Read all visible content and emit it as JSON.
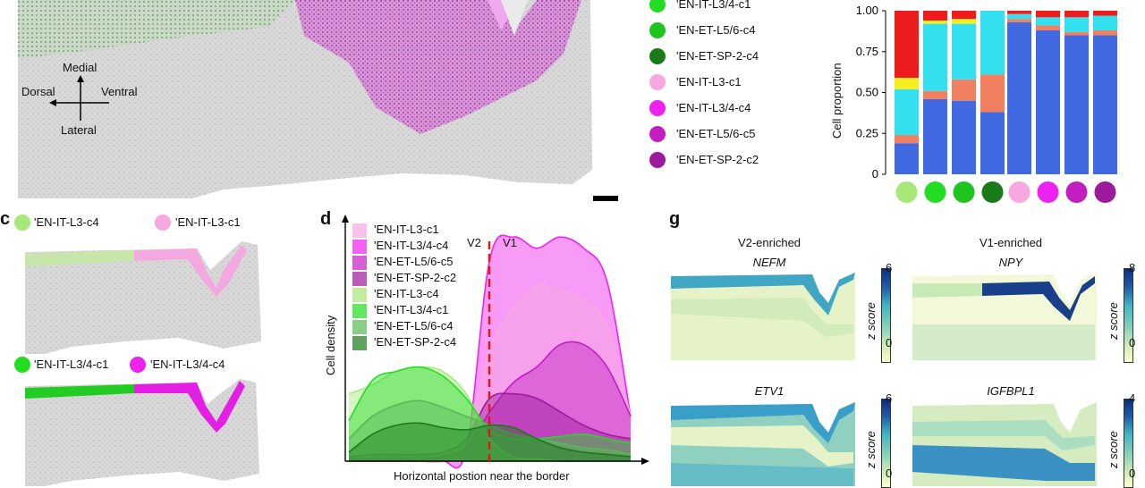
{
  "colors": {
    "green_c4": "#a6e87a",
    "green_c1": "#22dd22",
    "green_c4b": "#1fc41f",
    "green_c2": "#1a7a1a",
    "pink_c1": "#f7a8e0",
    "magenta_c4": "#ee22ee",
    "purple_c5": "#c21fc2",
    "purple_c2": "#9c1a9c",
    "bar_blue": "#4169e1",
    "bar_salmon": "#f08060",
    "bar_cyan": "#33e0f0",
    "bar_yellow": "#f4f020",
    "bar_red": "#ee1c1c"
  },
  "panel_a": {
    "orientation": {
      "medial": "Medial",
      "dorsal": "Dorsal",
      "ventral": "Ventral",
      "lateral": "Lateral"
    },
    "legend": [
      {
        "label": "'EN-IT-L3/4-c1",
        "color": "#22dd22"
      },
      {
        "label": "'EN-ET-L5/6-c4",
        "color": "#1fc41f"
      },
      {
        "label": "'EN-ET-SP-2-c4",
        "color": "#1a7a1a"
      },
      {
        "label": "'EN-IT-L3-c1",
        "color": "#f7a8e0"
      },
      {
        "label": "'EN-IT-L3/4-c4",
        "color": "#ee22ee"
      },
      {
        "label": "'EN-ET-L5/6-c5",
        "color": "#c21fc2"
      },
      {
        "label": "'EN-ET-SP-2-c2",
        "color": "#9c1a9c"
      }
    ]
  },
  "chart_data": [
    {
      "type": "bar",
      "stacked": true,
      "ylabel": "Cell proportion",
      "ylim": [
        0,
        1
      ],
      "yticks": [
        "0",
        "0.25",
        "0.50",
        "0.75",
        "1.00"
      ],
      "category_colors": [
        "#a6e87a",
        "#22dd22",
        "#1fc41f",
        "#1a7a1a",
        "#f7a8e0",
        "#ee22ee",
        "#c21fc2",
        "#9c1a9c"
      ],
      "series": [
        {
          "color": "#4169e1",
          "values": [
            0.19,
            0.46,
            0.45,
            0.38,
            0.93,
            0.88,
            0.85,
            0.85
          ]
        },
        {
          "color": "#f08060",
          "values": [
            0.05,
            0.05,
            0.13,
            0.23,
            0.02,
            0.03,
            0.02,
            0.03
          ]
        },
        {
          "color": "#33e0f0",
          "values": [
            0.28,
            0.41,
            0.34,
            0.39,
            0.03,
            0.05,
            0.09,
            0.09
          ]
        },
        {
          "color": "#f4f020",
          "values": [
            0.07,
            0.02,
            0.03,
            0.0,
            0.0,
            0.0,
            0.0,
            0.0
          ]
        },
        {
          "color": "#ee1c1c",
          "values": [
            0.41,
            0.06,
            0.05,
            0.0,
            0.02,
            0.04,
            0.04,
            0.03
          ]
        }
      ]
    },
    {
      "type": "area",
      "xlabel": "Horizontal postion near the border",
      "ylabel": "Cell density",
      "markers": [
        "V2",
        "V1"
      ],
      "series": [
        {
          "name": "'EN-IT-L3-c1",
          "color": "#f7a8e0",
          "values": [
            0.0,
            0.0,
            0.0,
            0.0,
            0.0,
            0.05,
            0.5,
            0.68,
            0.78,
            0.76,
            0.72,
            0.6,
            0.2
          ]
        },
        {
          "name": "'EN-IT-L3/4-c4",
          "color": "#ee22ee",
          "values": [
            0.0,
            0.0,
            0.0,
            0.0,
            0.0,
            0.05,
            0.9,
            1.0,
            0.95,
            1.0,
            0.95,
            0.8,
            0.2
          ]
        },
        {
          "name": "'EN-ET-L5/6-c5",
          "color": "#c21fc2",
          "values": [
            0.01,
            0.01,
            0.01,
            0.01,
            0.02,
            0.06,
            0.22,
            0.35,
            0.42,
            0.52,
            0.52,
            0.42,
            0.2
          ]
        },
        {
          "name": "'EN-ET-SP-2-c2",
          "color": "#9c1a9c",
          "values": [
            0.02,
            0.03,
            0.03,
            0.03,
            0.04,
            0.1,
            0.28,
            0.3,
            0.28,
            0.22,
            0.16,
            0.12,
            0.1
          ]
        },
        {
          "name": "'EN-IT-L3-c4",
          "color": "#a6e87a",
          "values": [
            0.3,
            0.34,
            0.4,
            0.42,
            0.4,
            0.3,
            0.1,
            0.02,
            0.01,
            0.0,
            0.0,
            0.0,
            0.0
          ]
        },
        {
          "name": "'EN-IT-L3/4-c1",
          "color": "#22dd22",
          "values": [
            0.18,
            0.36,
            0.4,
            0.42,
            0.38,
            0.28,
            0.14,
            0.1,
            0.1,
            0.11,
            0.12,
            0.1,
            0.08
          ]
        },
        {
          "name": "'EN-ET-L5/6-c4",
          "color": "#58b858",
          "values": [
            0.1,
            0.2,
            0.25,
            0.27,
            0.24,
            0.2,
            0.16,
            0.12,
            0.1,
            0.08,
            0.06,
            0.05,
            0.03
          ]
        },
        {
          "name": "'EN-ET-SP-2-c4",
          "color": "#1a7a1a",
          "values": [
            0.04,
            0.12,
            0.16,
            0.17,
            0.15,
            0.14,
            0.16,
            0.15,
            0.1,
            0.06,
            0.04,
            0.03,
            0.02
          ]
        }
      ]
    }
  ],
  "panel_c": {
    "letter": "c",
    "top_legend": [
      {
        "label": "'EN-IT-L3-c4",
        "color": "#a6e87a"
      },
      {
        "label": "'EN-IT-L3-c1",
        "color": "#f7a8e0"
      }
    ],
    "bottom_legend": [
      {
        "label": "'EN-IT-L3/4-c1",
        "color": "#22dd22"
      },
      {
        "label": "'EN-IT-L3/4-c4",
        "color": "#ee22ee"
      }
    ]
  },
  "panel_d": {
    "letter": "d"
  },
  "panel_g": {
    "letter": "g",
    "v2_title": "V2-enriched",
    "v1_title": "V1-enriched",
    "zlabel": "z score",
    "maps": [
      {
        "gene": "NEFM",
        "max": "6",
        "min": "0"
      },
      {
        "gene": "NPY",
        "max": "8",
        "min": "0"
      },
      {
        "gene": "ETV1",
        "max": "6",
        "min": "0"
      },
      {
        "gene": "IGFBPL1",
        "max": "4",
        "min": "0"
      }
    ]
  }
}
